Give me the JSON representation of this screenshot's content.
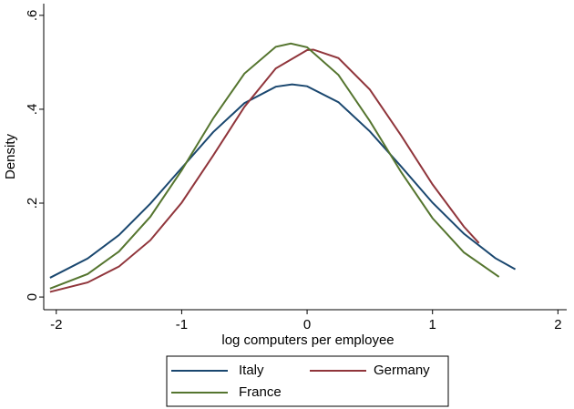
{
  "chart_data": {
    "type": "line",
    "xlabel": "log computers per employee",
    "ylabel": "Density",
    "xlim": [
      -2.1,
      2.07
    ],
    "ylim": [
      -0.027,
      0.623
    ],
    "xticks": [
      -2,
      -1,
      0,
      1,
      2
    ],
    "yticks": [
      0,
      {
        "value": 0.2,
        "label": ".2"
      },
      {
        "value": 0.4,
        "label": ".4"
      },
      {
        "value": 0.6,
        "label": ".6"
      }
    ],
    "grid": false,
    "legend": "bottom",
    "series": [
      {
        "name": "Italy",
        "color": "#1a476f",
        "x": [
          -2.05,
          -1.75,
          -1.5,
          -1.25,
          -1,
          -0.75,
          -0.5,
          -0.25,
          -0.12,
          0,
          0.25,
          0.5,
          0.75,
          1,
          1.25,
          1.5,
          1.66
        ],
        "values": [
          0.041,
          0.082,
          0.132,
          0.199,
          0.275,
          0.351,
          0.413,
          0.448,
          0.453,
          0.449,
          0.415,
          0.353,
          0.278,
          0.201,
          0.135,
          0.083,
          0.059
        ]
      },
      {
        "name": "Germany",
        "color": "#90353b",
        "x": [
          -2.05,
          -1.75,
          -1.5,
          -1.25,
          -1,
          -0.75,
          -0.5,
          -0.25,
          0,
          0.05,
          0.25,
          0.5,
          0.75,
          1,
          1.25,
          1.37
        ],
        "values": [
          0.011,
          0.031,
          0.065,
          0.121,
          0.201,
          0.301,
          0.405,
          0.487,
          0.526,
          0.527,
          0.509,
          0.442,
          0.344,
          0.24,
          0.15,
          0.115
        ]
      },
      {
        "name": "France",
        "color": "#55752f",
        "x": [
          -2.05,
          -1.75,
          -1.5,
          -1.25,
          -1,
          -0.75,
          -0.5,
          -0.25,
          -0.13,
          0,
          0.25,
          0.5,
          0.75,
          1,
          1.25,
          1.53
        ],
        "values": [
          0.018,
          0.049,
          0.097,
          0.171,
          0.27,
          0.38,
          0.476,
          0.533,
          0.54,
          0.532,
          0.473,
          0.375,
          0.266,
          0.168,
          0.095,
          0.043
        ]
      }
    ]
  }
}
